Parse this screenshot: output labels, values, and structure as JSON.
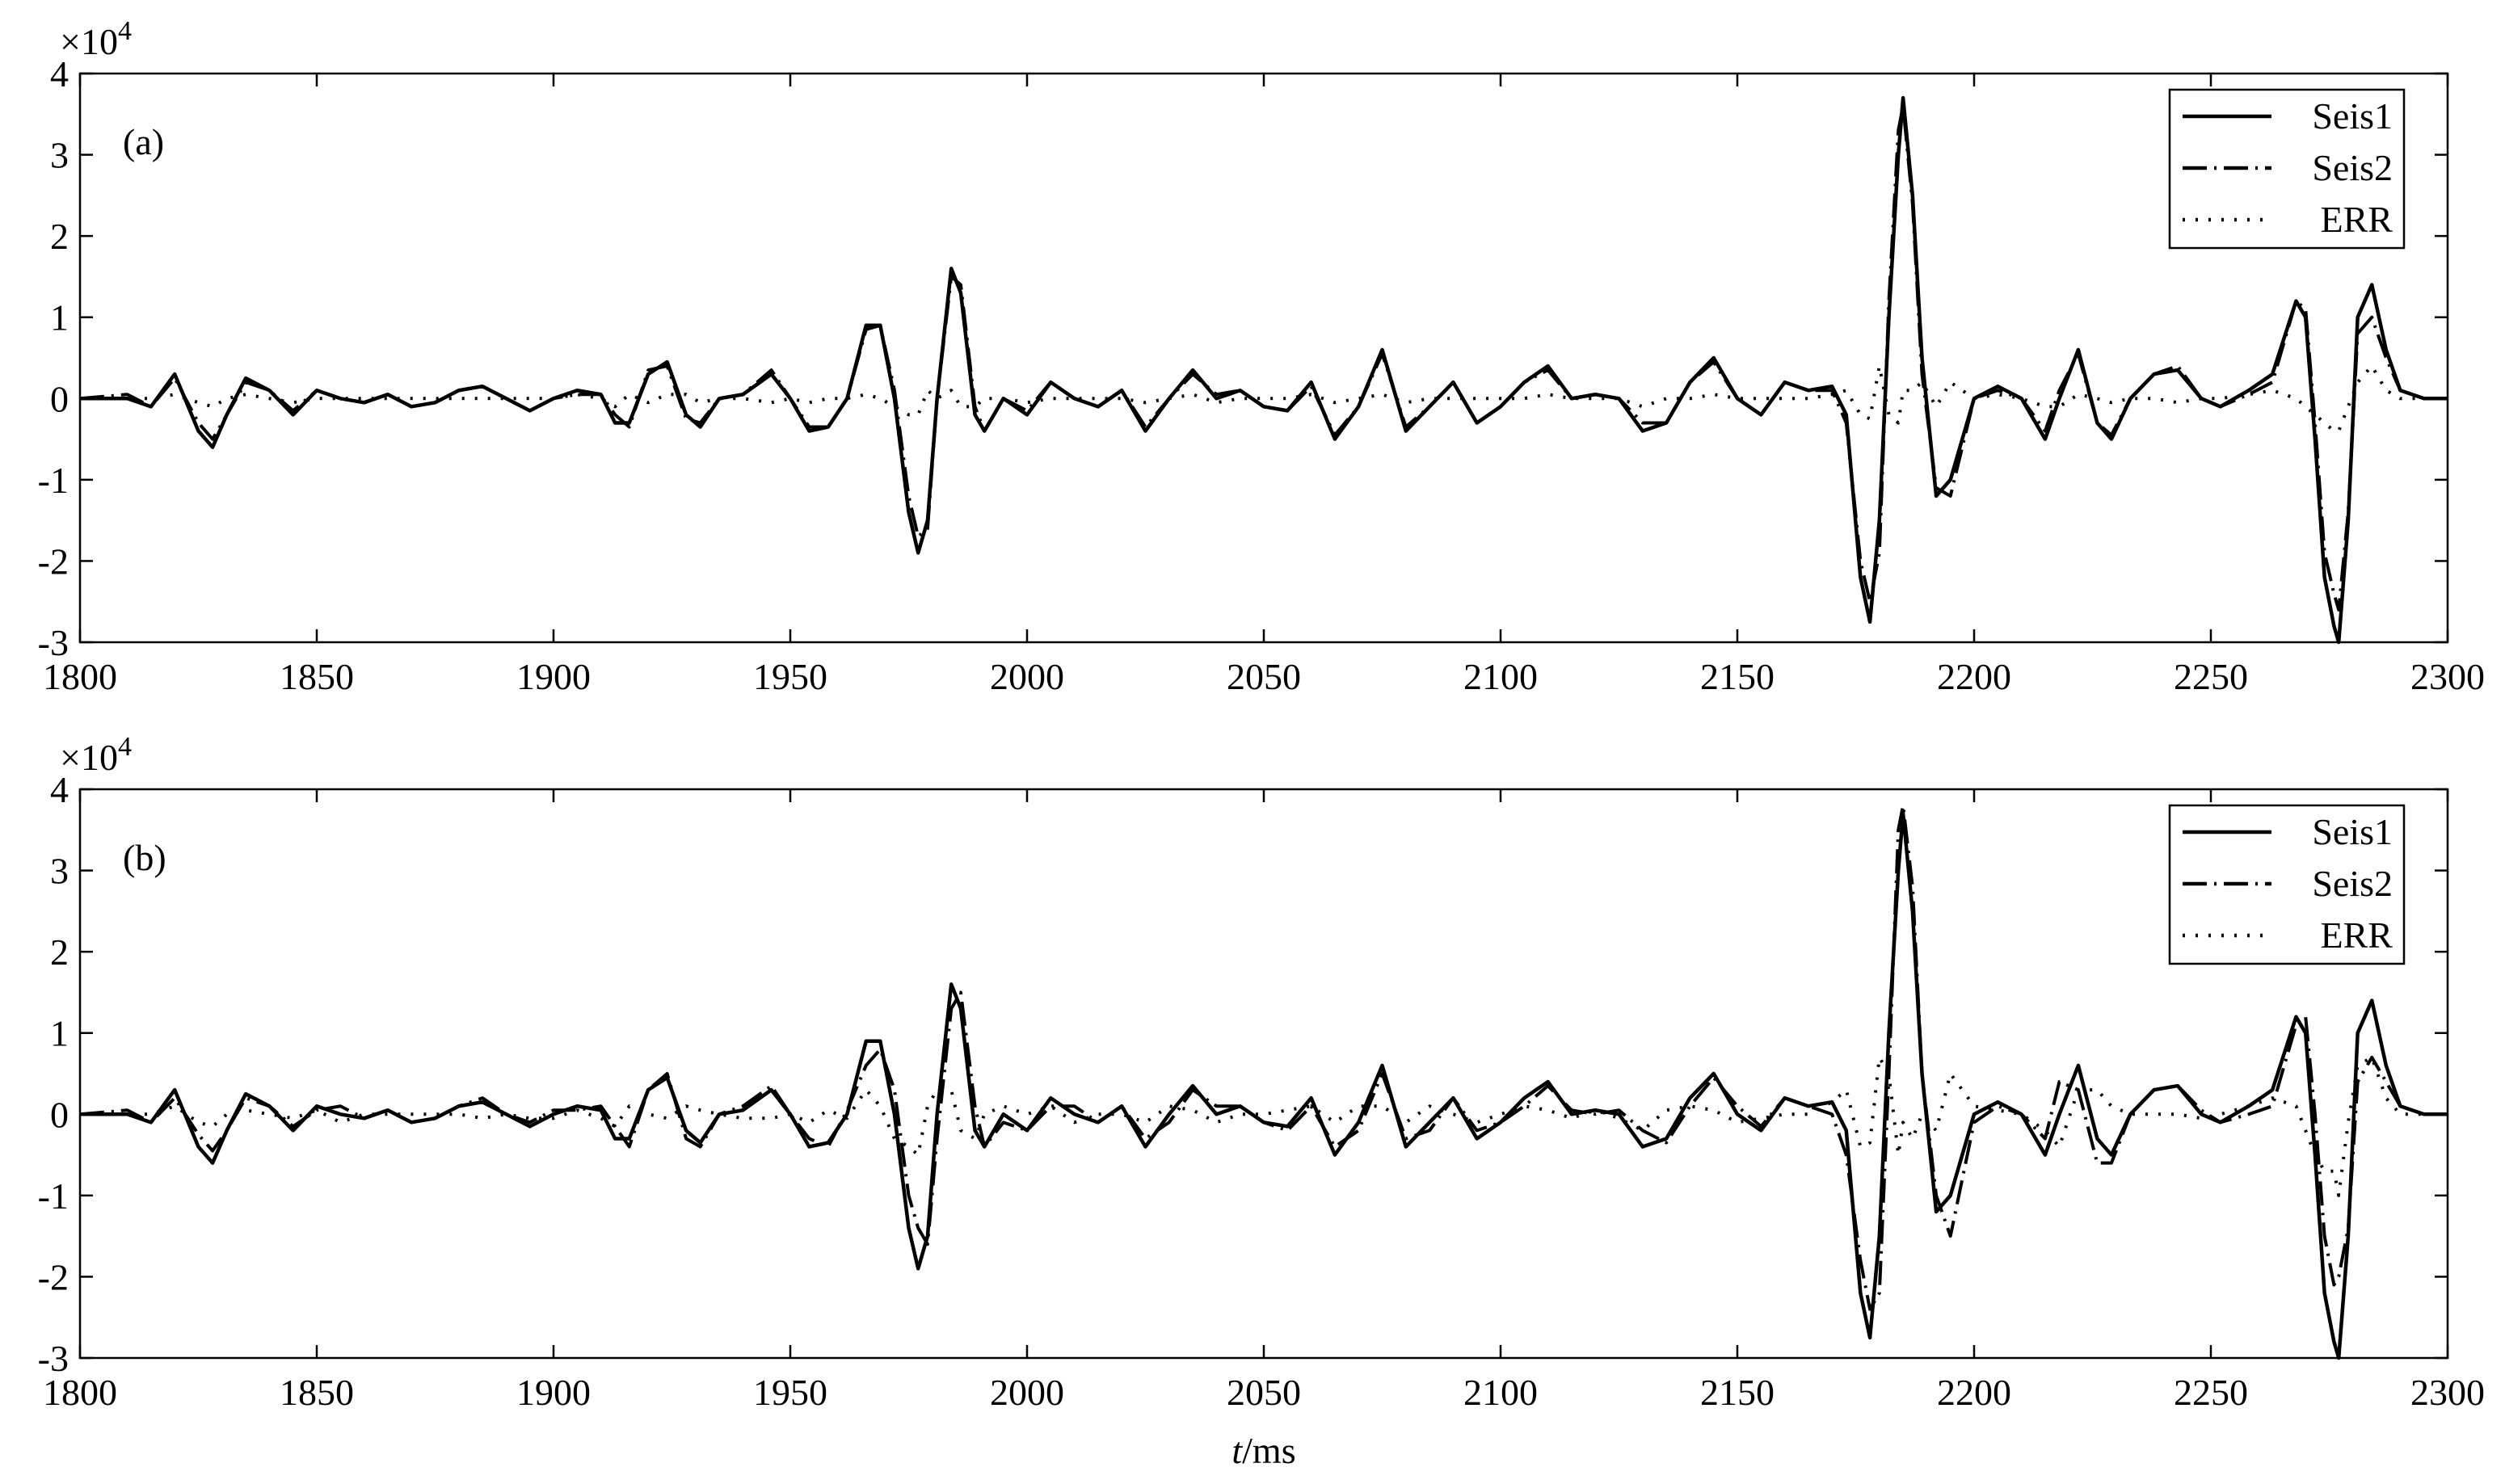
{
  "chart_data": [
    {
      "type": "line",
      "panel_label": "(a)",
      "y_multiplier": {
        "base": "×10",
        "exponent": "4"
      },
      "xlim": [
        1800,
        2300
      ],
      "xticks": [
        1800,
        1850,
        1900,
        1950,
        2000,
        2050,
        2100,
        2150,
        2200,
        2250,
        2300
      ],
      "ylim": [
        -3,
        4
      ],
      "yticks": [
        -3,
        -2,
        -1,
        0,
        1,
        2,
        3,
        4
      ],
      "legend": "upper right",
      "x": [
        1800,
        1810,
        1815,
        1820,
        1825,
        1828,
        1831,
        1835,
        1840,
        1845,
        1850,
        1855,
        1860,
        1865,
        1870,
        1875,
        1880,
        1885,
        1890,
        1895,
        1900,
        1905,
        1910,
        1913,
        1916,
        1920,
        1924,
        1928,
        1931,
        1935,
        1940,
        1946,
        1950,
        1954,
        1958,
        1962,
        1966,
        1969,
        1972,
        1975,
        1977,
        1979,
        1981,
        1984,
        1986,
        1989,
        1991,
        1995,
        2000,
        2005,
        2010,
        2015,
        2020,
        2025,
        2030,
        2035,
        2040,
        2045,
        2050,
        2055,
        2060,
        2065,
        2070,
        2075,
        2080,
        2085,
        2090,
        2095,
        2100,
        2105,
        2110,
        2115,
        2120,
        2125,
        2130,
        2135,
        2140,
        2145,
        2150,
        2155,
        2160,
        2165,
        2170,
        2173,
        2176,
        2178,
        2180,
        2182,
        2184,
        2185,
        2187,
        2189,
        2192,
        2195,
        2200,
        2205,
        2210,
        2215,
        2218,
        2222,
        2226,
        2229,
        2233,
        2238,
        2243,
        2248,
        2252,
        2258,
        2263,
        2268,
        2270,
        2272,
        2274,
        2276,
        2277,
        2279,
        2281,
        2284,
        2287,
        2290,
        2295,
        2300
      ],
      "series": [
        {
          "name": "Seis1",
          "color": "#000000",
          "style": "solid",
          "values": [
            0,
            0,
            -0.1,
            0.3,
            -0.4,
            -0.6,
            -0.2,
            0.25,
            0.1,
            -0.2,
            0.1,
            0,
            -0.05,
            0.05,
            -0.1,
            -0.05,
            0.1,
            0.15,
            0,
            -0.15,
            0,
            0.1,
            0.05,
            -0.3,
            -0.3,
            0.3,
            0.45,
            -0.2,
            -0.35,
            0,
            0.05,
            0.3,
            0,
            -0.4,
            -0.35,
            0,
            0.9,
            0.9,
            0,
            -1.4,
            -1.9,
            -1.5,
            0,
            1.6,
            1.3,
            -0.2,
            -0.4,
            0,
            -0.2,
            0.2,
            0,
            -0.1,
            0.1,
            -0.4,
            0,
            0.35,
            0,
            0.1,
            -0.1,
            -0.15,
            0.2,
            -0.5,
            -0.1,
            0.6,
            -0.4,
            -0.1,
            0.2,
            -0.3,
            -0.1,
            0.2,
            0.4,
            0,
            0.05,
            0,
            -0.4,
            -0.3,
            0.2,
            0.5,
            0,
            -0.2,
            0.2,
            0.1,
            0.15,
            -0.2,
            -2.2,
            -2.75,
            -1.5,
            1.0,
            3.0,
            3.7,
            2.5,
            0.5,
            -1.2,
            -1.0,
            0,
            0.15,
            0,
            -0.5,
            0,
            0.6,
            -0.3,
            -0.5,
            0,
            0.3,
            0.35,
            0,
            -0.1,
            0.1,
            0.3,
            1.2,
            1.0,
            -0.5,
            -2.2,
            -2.8,
            -3.0,
            -1.5,
            1.0,
            1.4,
            0.6,
            0.1,
            0,
            0
          ]
        },
        {
          "name": "Seis2",
          "color": "#000000",
          "style": "dashdot",
          "values": [
            0,
            0.05,
            -0.1,
            0.25,
            -0.3,
            -0.5,
            -0.2,
            0.2,
            0.1,
            -0.15,
            0.1,
            0,
            -0.05,
            0.05,
            -0.1,
            -0.05,
            0.1,
            0.15,
            0,
            -0.15,
            0,
            0.05,
            0.05,
            -0.2,
            -0.35,
            0.35,
            0.4,
            -0.25,
            -0.3,
            0,
            0.05,
            0.35,
            0,
            -0.35,
            -0.35,
            0,
            0.85,
            0.9,
            0.1,
            -1.2,
            -1.7,
            -1.6,
            0,
            1.5,
            1.4,
            -0.1,
            -0.4,
            0,
            -0.15,
            0.2,
            0,
            -0.1,
            0.1,
            -0.35,
            0,
            0.3,
            0.05,
            0.1,
            -0.1,
            -0.15,
            0.15,
            -0.45,
            -0.1,
            0.55,
            -0.35,
            -0.1,
            0.2,
            -0.3,
            -0.1,
            0.2,
            0.35,
            0,
            0.05,
            0,
            -0.3,
            -0.3,
            0.2,
            0.45,
            0,
            -0.2,
            0.2,
            0.1,
            0.1,
            -0.3,
            -2.0,
            -2.5,
            -1.9,
            1.2,
            3.3,
            3.6,
            2.4,
            0.3,
            -1.1,
            -1.2,
            0,
            0.1,
            0,
            -0.4,
            0.1,
            0.55,
            -0.3,
            -0.45,
            0,
            0.3,
            0.4,
            0,
            -0.1,
            0.05,
            0.2,
            1.2,
            1.1,
            -0.3,
            -1.9,
            -2.4,
            -2.6,
            -1.4,
            0.8,
            1.0,
            0.5,
            0.1,
            0,
            0
          ]
        },
        {
          "name": "ERR",
          "color": "#000000",
          "style": "dotted",
          "values": [
            0,
            0,
            0,
            0.05,
            -0.05,
            -0.1,
            0,
            0.05,
            0,
            -0.05,
            0,
            0,
            0,
            0,
            0,
            0,
            0,
            0,
            0,
            0,
            0,
            0.05,
            0,
            -0.1,
            0.05,
            -0.05,
            0.05,
            0.05,
            -0.05,
            0,
            0,
            -0.05,
            0,
            -0.05,
            0,
            0,
            0.05,
            0,
            -0.1,
            -0.2,
            -0.2,
            0.1,
            0,
            0.1,
            -0.1,
            -0.1,
            0,
            0,
            -0.05,
            0,
            0,
            0,
            0,
            -0.05,
            0,
            0.05,
            -0.05,
            0,
            0,
            0,
            0.05,
            -0.05,
            0,
            0.05,
            -0.05,
            0,
            0,
            0,
            0,
            0,
            0.05,
            0,
            0,
            0,
            -0.1,
            0,
            0,
            0.05,
            0,
            0,
            0,
            0,
            0.05,
            0.1,
            -0.2,
            -0.25,
            0.4,
            -0.2,
            -0.3,
            0.1,
            0.1,
            0.2,
            -0.1,
            0.2,
            0,
            0.05,
            0,
            -0.1,
            -0.1,
            0.05,
            0,
            -0.05,
            0,
            0,
            -0.05,
            0,
            0,
            0.05,
            0.1,
            0,
            -0.1,
            -0.2,
            -0.3,
            -0.4,
            -0.4,
            -0.1,
            0.2,
            0.4,
            0.1,
            0,
            0,
            0
          ]
        }
      ]
    },
    {
      "type": "line",
      "panel_label": "(b)",
      "y_multiplier": {
        "base": "×10",
        "exponent": "4"
      },
      "xlabel": {
        "var": "t",
        "unit": "/ms"
      },
      "xlim": [
        1800,
        2300
      ],
      "xticks": [
        1800,
        1850,
        1900,
        1950,
        2000,
        2050,
        2100,
        2150,
        2200,
        2250,
        2300
      ],
      "ylim": [
        -3,
        4
      ],
      "yticks": [
        -3,
        -2,
        -1,
        0,
        1,
        2,
        3,
        4
      ],
      "legend": "upper right",
      "x": [
        1800,
        1810,
        1815,
        1820,
        1825,
        1828,
        1831,
        1835,
        1840,
        1845,
        1850,
        1855,
        1860,
        1865,
        1870,
        1875,
        1880,
        1885,
        1890,
        1895,
        1900,
        1905,
        1910,
        1913,
        1916,
        1920,
        1924,
        1928,
        1931,
        1935,
        1940,
        1946,
        1950,
        1954,
        1958,
        1962,
        1966,
        1969,
        1972,
        1975,
        1977,
        1979,
        1981,
        1984,
        1986,
        1989,
        1991,
        1995,
        2000,
        2005,
        2010,
        2015,
        2020,
        2025,
        2030,
        2035,
        2040,
        2045,
        2050,
        2055,
        2060,
        2065,
        2070,
        2075,
        2080,
        2085,
        2090,
        2095,
        2100,
        2105,
        2110,
        2115,
        2120,
        2125,
        2130,
        2135,
        2140,
        2145,
        2150,
        2155,
        2160,
        2165,
        2170,
        2173,
        2176,
        2178,
        2180,
        2182,
        2184,
        2185,
        2187,
        2189,
        2192,
        2195,
        2200,
        2205,
        2210,
        2215,
        2218,
        2222,
        2226,
        2229,
        2233,
        2238,
        2243,
        2248,
        2252,
        2258,
        2263,
        2268,
        2270,
        2272,
        2274,
        2276,
        2277,
        2279,
        2281,
        2284,
        2287,
        2290,
        2295,
        2300
      ],
      "series": [
        {
          "name": "Seis1",
          "color": "#000000",
          "style": "solid",
          "values": [
            0,
            0,
            -0.1,
            0.3,
            -0.4,
            -0.6,
            -0.2,
            0.25,
            0.1,
            -0.2,
            0.1,
            0,
            -0.05,
            0.05,
            -0.1,
            -0.05,
            0.1,
            0.15,
            0,
            -0.15,
            0,
            0.1,
            0.05,
            -0.3,
            -0.3,
            0.3,
            0.45,
            -0.2,
            -0.35,
            0,
            0.05,
            0.3,
            0,
            -0.4,
            -0.35,
            0,
            0.9,
            0.9,
            0,
            -1.4,
            -1.9,
            -1.5,
            0,
            1.6,
            1.3,
            -0.2,
            -0.4,
            0,
            -0.2,
            0.2,
            0,
            -0.1,
            0.1,
            -0.4,
            0,
            0.35,
            0,
            0.1,
            -0.1,
            -0.15,
            0.2,
            -0.5,
            -0.1,
            0.6,
            -0.4,
            -0.1,
            0.2,
            -0.3,
            -0.1,
            0.2,
            0.4,
            0,
            0.05,
            0,
            -0.4,
            -0.3,
            0.2,
            0.5,
            0,
            -0.2,
            0.2,
            0.1,
            0.15,
            -0.2,
            -2.2,
            -2.75,
            -1.5,
            1.0,
            3.0,
            3.7,
            2.5,
            0.5,
            -1.2,
            -1.0,
            0,
            0.15,
            0,
            -0.5,
            0,
            0.6,
            -0.3,
            -0.5,
            0,
            0.3,
            0.35,
            0,
            -0.1,
            0.1,
            0.3,
            1.2,
            1.0,
            -0.5,
            -2.2,
            -2.8,
            -3.0,
            -1.5,
            1.0,
            1.4,
            0.6,
            0.1,
            0,
            0
          ]
        },
        {
          "name": "Seis2",
          "color": "#000000",
          "style": "dashdot",
          "values": [
            0,
            0.05,
            -0.1,
            0.2,
            -0.25,
            -0.45,
            -0.2,
            0.2,
            0.1,
            -0.15,
            0.05,
            0.1,
            -0.05,
            0.05,
            -0.1,
            -0.05,
            0.1,
            0.2,
            0,
            -0.1,
            0.05,
            0.05,
            0.1,
            -0.15,
            -0.4,
            0.3,
            0.5,
            -0.3,
            -0.4,
            0,
            0.1,
            0.35,
            0,
            -0.3,
            -0.4,
            0.05,
            0.6,
            0.8,
            0.3,
            -1.0,
            -1.4,
            -1.6,
            -0.3,
            1.3,
            1.5,
            0.1,
            -0.4,
            -0.1,
            -0.2,
            0.1,
            0.1,
            -0.1,
            0.1,
            -0.3,
            -0.1,
            0.3,
            0.1,
            0.1,
            -0.1,
            -0.2,
            0.1,
            -0.4,
            -0.2,
            0.5,
            -0.3,
            -0.2,
            0.2,
            -0.2,
            -0.1,
            0.1,
            0.35,
            0.05,
            0,
            0.05,
            -0.2,
            -0.35,
            0.1,
            0.45,
            0.1,
            -0.15,
            0.2,
            0.1,
            0,
            -0.5,
            -1.8,
            -2.4,
            -2.2,
            0.5,
            3.5,
            3.8,
            2.8,
            0.5,
            -1.0,
            -1.5,
            -0.1,
            0.1,
            0,
            -0.3,
            0.4,
            0.3,
            -0.6,
            -0.6,
            0,
            0.3,
            0.35,
            0.05,
            -0.1,
            0,
            0.1,
            1.1,
            1.2,
            0,
            -1.5,
            -2.1,
            -2.0,
            -1.4,
            0.4,
            0.7,
            0.4,
            0.1,
            0,
            0
          ]
        },
        {
          "name": "ERR",
          "color": "#000000",
          "style": "dotted",
          "values": [
            0,
            0,
            0,
            0.1,
            -0.1,
            -0.15,
            0,
            0.05,
            0,
            -0.05,
            0.05,
            -0.1,
            0,
            0,
            0,
            0,
            0,
            -0.05,
            0,
            -0.05,
            -0.05,
            0.05,
            -0.05,
            -0.15,
            0.1,
            0,
            -0.05,
            0.1,
            0.05,
            0,
            -0.05,
            -0.05,
            0,
            -0.1,
            0.05,
            -0.05,
            0.3,
            0.1,
            -0.3,
            -0.4,
            -0.5,
            0.1,
            0.3,
            0.3,
            -0.2,
            -0.3,
            0,
            0.1,
            0,
            0.1,
            -0.1,
            0,
            0,
            -0.1,
            0.1,
            0.05,
            -0.1,
            0,
            0,
            0.05,
            0.1,
            -0.1,
            0.1,
            0.1,
            -0.1,
            0.1,
            0,
            -0.1,
            0,
            0.1,
            0.05,
            -0.05,
            0.05,
            -0.05,
            -0.2,
            0.05,
            0.1,
            0.05,
            -0.1,
            -0.05,
            0,
            0,
            0.15,
            0.3,
            -0.4,
            -0.35,
            0.7,
            0.5,
            -0.5,
            -0.1,
            -0.3,
            0,
            -0.2,
            0.5,
            0.1,
            0.05,
            0,
            -0.2,
            -0.4,
            0.3,
            0.3,
            0.1,
            0,
            0,
            0,
            -0.05,
            0,
            0.1,
            0.2,
            0.1,
            -0.2,
            -0.5,
            -0.7,
            -0.7,
            -1.0,
            -0.1,
            0.6,
            0.7,
            0.2,
            0,
            0,
            0
          ]
        }
      ]
    }
  ]
}
